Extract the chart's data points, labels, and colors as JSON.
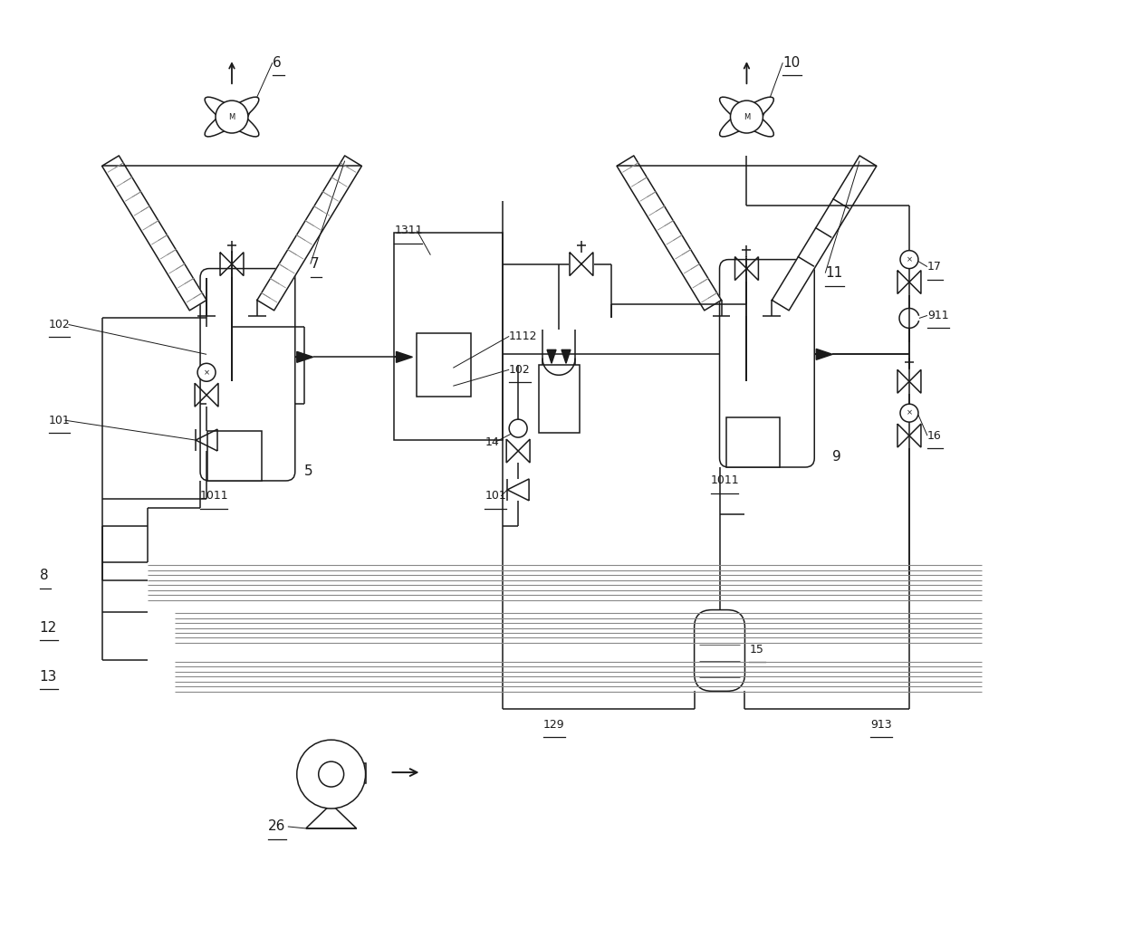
{
  "bg": "#ffffff",
  "lc": "#1a1a1a",
  "lw": 1.1,
  "fw": 12.4,
  "fh": 10.36,
  "dpi": 100
}
